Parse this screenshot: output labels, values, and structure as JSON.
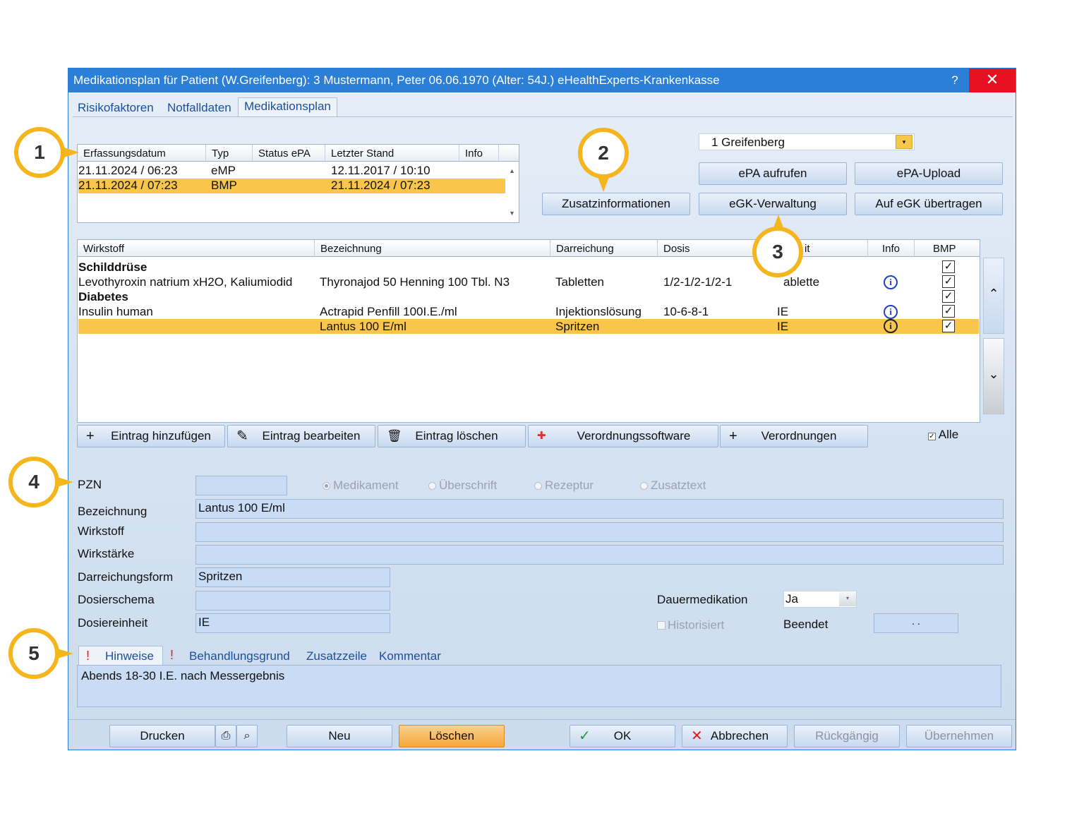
{
  "window": {
    "title": "Medikationsplan für Patient (W.Greifenberg): 3  Mustermann, Peter 06.06.1970  (Alter: 54J.)  eHealthExperts-Krankenkasse",
    "help": "?",
    "close": "✕"
  },
  "tabs": [
    "Risikofaktoren",
    "Notfalldaten",
    "Medikationsplan"
  ],
  "plans": {
    "headers": [
      "Erfassungsdatum",
      "Typ",
      "Status ePA",
      "Letzter Stand",
      "Info"
    ],
    "rows": [
      {
        "date": "21.11.2024 / 06:23",
        "typ": "eMP",
        "status": "",
        "stand": "12.11.2017 / 10:10"
      },
      {
        "date": "21.11.2024 / 07:23",
        "typ": "BMP",
        "status": "",
        "stand": "21.11.2024 / 07:23"
      }
    ]
  },
  "user_select": "1 Greifenberg",
  "top_buttons": {
    "zusatz": "Zusatzinformationen",
    "epa_aufrufen": "ePA aufrufen",
    "epa_upload": "ePA-Upload",
    "egk_verwaltung": "eGK-Verwaltung",
    "egk_uebertragen": "Auf eGK übertragen"
  },
  "meds": {
    "headers": [
      "Wirkstoff",
      "Bezeichnung",
      "Darreichung",
      "Dosis",
      "it",
      "Info",
      "BMP"
    ],
    "rows": [
      {
        "heading": "Schilddrüse"
      },
      {
        "wirkstoff": "Levothyroxin natrium xH2O, Kaliumiodid",
        "bezeichnung": "Thyronajod 50 Henning 100 Tbl. N3",
        "darreichung": "Tabletten",
        "dosis": "1/2-1/2-1/2-1",
        "einheit": "ablette"
      },
      {
        "heading": "Diabetes"
      },
      {
        "wirkstoff": "Insulin human",
        "bezeichnung": "Actrapid Penfill 100I.E./ml",
        "darreichung": "Injektionslösung",
        "dosis": "10-6-8-1",
        "einheit": "IE"
      },
      {
        "wirkstoff": "",
        "bezeichnung": "Lantus 100 E/ml",
        "darreichung": "Spritzen",
        "dosis": "",
        "einheit": "IE"
      }
    ]
  },
  "action_buttons": {
    "add": "Eintrag hinzufügen",
    "edit": "Eintrag bearbeiten",
    "delete": "Eintrag löschen",
    "software": "Verordnungssoftware",
    "verordnungen": "Verordnungen"
  },
  "alle": "Alle",
  "form": {
    "pzn_label": "PZN",
    "pzn_value": "",
    "radio": [
      "Medikament",
      "Überschrift",
      "Rezeptur",
      "Zusatztext"
    ],
    "bezeichnung_label": "Bezeichnung",
    "bezeichnung_value": "Lantus 100 E/ml",
    "wirkstoff_label": "Wirkstoff",
    "wirkstoff_value": "",
    "wirkstaerke_label": "Wirkstärke",
    "wirkstaerke_value": "",
    "darreichung_label": "Darreichungsform",
    "darreichung_value": "Spritzen",
    "dosierschema_label": "Dosierschema",
    "dosierschema_value": "",
    "dosiereinheit_label": "Dosiereinheit",
    "dosiereinheit_value": "IE",
    "dauer_label": "Dauermedikation",
    "dauer_value": "Ja",
    "historisiert_label": "Historisiert",
    "beendet_label": "Beendet",
    "beendet_value": ".   ."
  },
  "note_tabs": [
    "Hinweise",
    "Behandlungsgrund",
    "Zusatzzeile",
    "Kommentar"
  ],
  "note_text": "Abends 18-30 I.E. nach Messergebnis",
  "bottom_buttons": {
    "drucken": "Drucken",
    "neu": "Neu",
    "loeschen": "Löschen",
    "ok": "OK",
    "abbrechen": "Abbrechen",
    "rueckgaengig": "Rückgängig",
    "uebernehmen": "Übernehmen"
  },
  "callouts": [
    "1",
    "2",
    "3",
    "4",
    "5"
  ],
  "colors": {
    "selection": "#f9c54a",
    "titlebar": "#2b7fd6",
    "callout": "#f5b51c",
    "field": "#c9dcf6"
  }
}
